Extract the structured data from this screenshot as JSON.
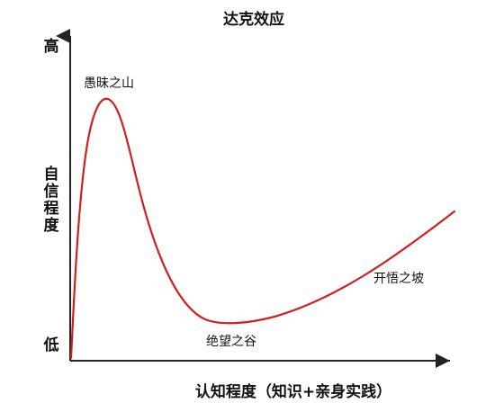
{
  "title": "达克效应",
  "y_axis": {
    "top_label": "高",
    "bottom_label": "低",
    "label_lines": [
      "自",
      "信",
      "程",
      "度"
    ]
  },
  "x_axis": {
    "label": "认知程度（知识+亲身实践）"
  },
  "annotations": {
    "peak": "愚昧之山",
    "valley": "绝望之谷",
    "slope": "开悟之坡"
  },
  "colors": {
    "curve": "#d11f1f",
    "axis": "#222222",
    "text": "#111111"
  }
}
